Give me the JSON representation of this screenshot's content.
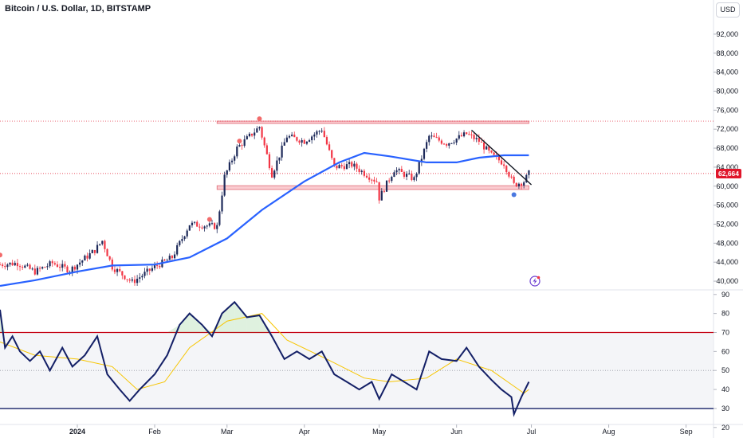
{
  "header": {
    "title": "Bitcoin / U.S. Dollar, 1D, BITSTAMP",
    "currency": "USD"
  },
  "last_price_label": "62,664",
  "colors": {
    "up": "#089981",
    "down": "#f23645",
    "candle": "#1e2a5a",
    "ma": "#2962ff",
    "rsi": "#131f66",
    "rsi_ma": "#f7c500",
    "zone": "#f5a3ab",
    "marker_up": "#f26b6b",
    "marker_down": "#4a78e0"
  },
  "icons": {
    "alert": "flash-icon"
  },
  "chart_data": [
    {
      "type": "candlestick",
      "title": "Bitcoin / U.S. Dollar, 1D, BITSTAMP",
      "x_unit": "date",
      "x_range": [
        "2023-12-01",
        "2024-09-12"
      ],
      "ylim": [
        38500,
        95000
      ],
      "y_ticks": [
        "40,000",
        "44,000",
        "48,000",
        "52,000",
        "56,000",
        "60,000",
        "64,000",
        "68,000",
        "72,000",
        "76,000",
        "80,000",
        "84,000",
        "88,000",
        "92,000"
      ],
      "x_ticks": [
        "2024",
        "Feb",
        "Mar",
        "Apr",
        "May",
        "Jun",
        "Jul",
        "Aug",
        "Sep"
      ],
      "price_anchors": [
        [
          "2023-12-01",
          43500
        ],
        [
          "2023-12-08",
          43800
        ],
        [
          "2023-12-15",
          42000
        ],
        [
          "2023-12-22",
          43800
        ],
        [
          "2023-12-29",
          42300
        ],
        [
          "2024-01-08",
          46500
        ],
        [
          "2024-01-11",
          48500
        ],
        [
          "2024-01-15",
          43000
        ],
        [
          "2024-01-23",
          39800
        ],
        [
          "2024-02-01",
          43000
        ],
        [
          "2024-02-08",
          45000
        ],
        [
          "2024-02-15",
          52000
        ],
        [
          "2024-02-26",
          51500
        ],
        [
          "2024-02-29",
          62000
        ],
        [
          "2024-03-05",
          68000
        ],
        [
          "2024-03-14",
          72500
        ],
        [
          "2024-03-19",
          62500
        ],
        [
          "2024-03-25",
          70500
        ],
        [
          "2024-04-01",
          69500
        ],
        [
          "2024-04-08",
          72000
        ],
        [
          "2024-04-13",
          64000
        ],
        [
          "2024-04-20",
          64500
        ],
        [
          "2024-04-30",
          61000
        ],
        [
          "2024-05-01",
          57500
        ],
        [
          "2024-05-07",
          63500
        ],
        [
          "2024-05-15",
          61500
        ],
        [
          "2024-05-21",
          70500
        ],
        [
          "2024-05-28",
          69000
        ],
        [
          "2024-06-05",
          71000
        ],
        [
          "2024-06-10",
          69500
        ],
        [
          "2024-06-15",
          66500
        ],
        [
          "2024-06-20",
          64800
        ],
        [
          "2024-06-24",
          60300
        ],
        [
          "2024-06-28",
          61000
        ],
        [
          "2024-06-30",
          62664
        ]
      ],
      "moving_average": [
        [
          "2023-12-01",
          39000
        ],
        [
          "2023-12-15",
          40200
        ],
        [
          "2024-01-01",
          42000
        ],
        [
          "2024-01-15",
          43300
        ],
        [
          "2024-02-01",
          43500
        ],
        [
          "2024-02-15",
          45000
        ],
        [
          "2024-03-01",
          49000
        ],
        [
          "2024-03-15",
          55000
        ],
        [
          "2024-04-01",
          61000
        ],
        [
          "2024-04-15",
          65000
        ],
        [
          "2024-04-25",
          67000
        ],
        [
          "2024-05-05",
          66300
        ],
        [
          "2024-05-20",
          65000
        ],
        [
          "2024-06-01",
          65000
        ],
        [
          "2024-06-10",
          66000
        ],
        [
          "2024-06-20",
          66500
        ],
        [
          "2024-06-30",
          66500
        ]
      ],
      "resistance_zone": {
        "from": "2024-02-26",
        "to": "2024-06-30",
        "y_low": 73300,
        "y_high": 73700
      },
      "support_zone": {
        "from": "2024-02-26",
        "to": "2024-06-30",
        "y_low": 59300,
        "y_high": 60100
      },
      "trendline": [
        [
          "2024-06-07",
          71800
        ],
        [
          "2024-07-01",
          60300
        ]
      ],
      "last_price": 62664,
      "markers": [
        {
          "date": "2023-12-01",
          "y": 45500,
          "kind": "up"
        },
        {
          "date": "2024-02-23",
          "y": 53000,
          "kind": "up"
        },
        {
          "date": "2024-03-06",
          "y": 69500,
          "kind": "up"
        },
        {
          "date": "2024-03-14",
          "y": 74200,
          "kind": "up"
        },
        {
          "date": "2024-06-24",
          "y": 58200,
          "kind": "down"
        }
      ]
    },
    {
      "type": "line",
      "title": "RSI",
      "ylim": [
        22,
        92
      ],
      "y_ticks": [
        "20",
        "30",
        "40",
        "50",
        "60",
        "70",
        "80",
        "90"
      ],
      "levels": [
        30,
        50,
        70
      ],
      "series": [
        {
          "name": "",
          "values": [
            [
              "2023-12-01",
              82
            ],
            [
              "2023-12-03",
              62
            ],
            [
              "2023-12-06",
              68
            ],
            [
              "2023-12-09",
              60
            ],
            [
              "2023-12-13",
              55
            ],
            [
              "2023-12-17",
              60
            ],
            [
              "2023-12-21",
              50
            ],
            [
              "2023-12-26",
              62
            ],
            [
              "2023-12-30",
              52
            ],
            [
              "2024-01-04",
              58
            ],
            [
              "2024-01-09",
              68
            ],
            [
              "2024-01-13",
              48
            ],
            [
              "2024-01-18",
              40
            ],
            [
              "2024-01-22",
              34
            ],
            [
              "2024-01-26",
              40
            ],
            [
              "2024-02-01",
              48
            ],
            [
              "2024-02-06",
              58
            ],
            [
              "2024-02-11",
              74
            ],
            [
              "2024-02-15",
              80
            ],
            [
              "2024-02-20",
              74
            ],
            [
              "2024-02-24",
              68
            ],
            [
              "2024-02-28",
              80
            ],
            [
              "2024-03-04",
              86
            ],
            [
              "2024-03-09",
              78
            ],
            [
              "2024-03-14",
              79
            ],
            [
              "2024-03-19",
              68
            ],
            [
              "2024-03-24",
              56
            ],
            [
              "2024-03-29",
              60
            ],
            [
              "2024-04-03",
              56
            ],
            [
              "2024-04-08",
              60
            ],
            [
              "2024-04-13",
              48
            ],
            [
              "2024-04-18",
              44
            ],
            [
              "2024-04-23",
              40
            ],
            [
              "2024-04-28",
              44
            ],
            [
              "2024-05-01",
              35
            ],
            [
              "2024-05-06",
              48
            ],
            [
              "2024-05-11",
              44
            ],
            [
              "2024-05-16",
              40
            ],
            [
              "2024-05-21",
              60
            ],
            [
              "2024-05-26",
              56
            ],
            [
              "2024-06-01",
              55
            ],
            [
              "2024-06-05",
              62
            ],
            [
              "2024-06-10",
              52
            ],
            [
              "2024-06-15",
              45
            ],
            [
              "2024-06-19",
              40
            ],
            [
              "2024-06-23",
              36
            ],
            [
              "2024-06-24",
              27
            ],
            [
              "2024-06-27",
              36
            ],
            [
              "2024-06-30",
              44
            ]
          ]
        },
        {
          "name": "",
          "values": [
            [
              "2023-12-01",
              65
            ],
            [
              "2023-12-15",
              58
            ],
            [
              "2024-01-01",
              56
            ],
            [
              "2024-01-15",
              52
            ],
            [
              "2024-01-25",
              40
            ],
            [
              "2024-02-05",
              44
            ],
            [
              "2024-02-15",
              62
            ],
            [
              "2024-03-01",
              76
            ],
            [
              "2024-03-15",
              80
            ],
            [
              "2024-03-25",
              66
            ],
            [
              "2024-04-10",
              56
            ],
            [
              "2024-04-25",
              46
            ],
            [
              "2024-05-05",
              44
            ],
            [
              "2024-05-20",
              46
            ],
            [
              "2024-06-01",
              56
            ],
            [
              "2024-06-15",
              50
            ],
            [
              "2024-06-28",
              38
            ],
            [
              "2024-06-30",
              40
            ]
          ]
        }
      ]
    }
  ]
}
